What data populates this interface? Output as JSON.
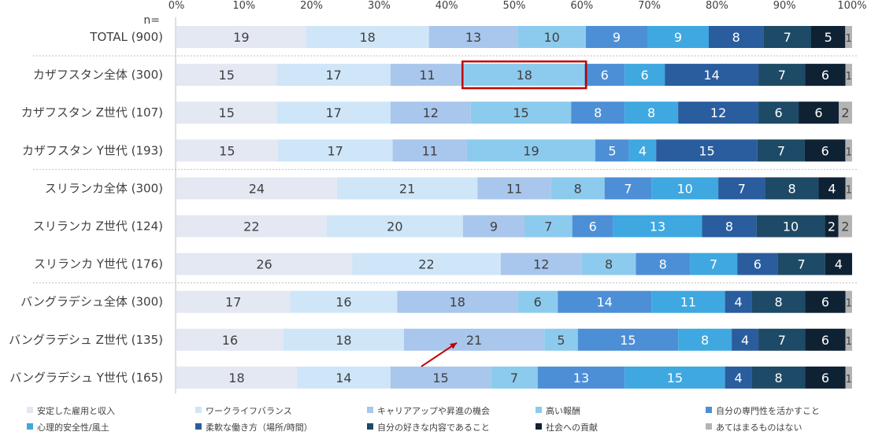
{
  "chart_data": {
    "type": "bar",
    "orientation": "horizontal",
    "stacked": true,
    "percent_stacked": true,
    "n_label": "n=",
    "xlim": [
      0,
      100
    ],
    "x_ticks": [
      "0%",
      "10%",
      "20%",
      "30%",
      "40%",
      "50%",
      "60%",
      "70%",
      "80%",
      "90%",
      "100%"
    ],
    "grid": false,
    "legend_position": "bottom",
    "categories": [
      "TOTAL (900)",
      "カザフスタン全体 (300)",
      "カザフスタン Z世代 (107)",
      "カザフスタン Y世代 (193)",
      "スリランカ全体 (300)",
      "スリランカ Z世代 (124)",
      "スリランカ Y世代 (176)",
      "バングラデシュ全体 (300)",
      "バングラデシュ Z世代 (135)",
      "バングラデシュ Y世代 (165)"
    ],
    "series": [
      {
        "name": "安定した雇用と収入",
        "color": "#e4e8f3",
        "values": [
          19,
          15,
          15,
          15,
          24,
          22,
          26,
          17,
          16,
          18
        ]
      },
      {
        "name": "ワークライフバランス",
        "color": "#cfe6f8",
        "values": [
          18,
          17,
          17,
          17,
          21,
          20,
          22,
          16,
          18,
          14
        ]
      },
      {
        "name": "キャリアアップや昇進の機会",
        "color": "#a9c6ec",
        "values": [
          13,
          11,
          12,
          11,
          11,
          9,
          12,
          18,
          21,
          15
        ]
      },
      {
        "name": "高い報酬",
        "color": "#8ccbee",
        "values": [
          10,
          18,
          15,
          19,
          8,
          7,
          8,
          6,
          5,
          7
        ]
      },
      {
        "name": "自分の専門性を活かすこと",
        "color": "#4d8fd6",
        "values": [
          9,
          6,
          8,
          5,
          7,
          6,
          8,
          14,
          15,
          13
        ]
      },
      {
        "name": "心理的安全性/風土",
        "color": "#3fa8e0",
        "values": [
          9,
          6,
          8,
          4,
          10,
          13,
          7,
          11,
          8,
          15
        ]
      },
      {
        "name": "柔軟な働き方（場所/時間）",
        "color": "#2a5d9e",
        "values": [
          8,
          14,
          12,
          15,
          7,
          8,
          6,
          4,
          4,
          4
        ]
      },
      {
        "name": "自分の好きな内容であること",
        "color": "#1d4a66",
        "values": [
          7,
          7,
          6,
          7,
          8,
          10,
          7,
          8,
          7,
          8
        ]
      },
      {
        "name": "社会への貢献",
        "color": "#0f2234",
        "values": [
          5,
          6,
          6,
          6,
          4,
          2,
          4,
          6,
          6,
          6
        ]
      },
      {
        "name": "あてはまるものはない",
        "color": "#b4b4b4",
        "values": [
          1,
          1,
          2,
          1,
          1,
          2,
          0,
          1,
          1,
          1
        ]
      }
    ],
    "group_separators_after": [
      0,
      3,
      6
    ],
    "highlight": {
      "category_index": 1,
      "series_index": 3,
      "color": "#c00000"
    },
    "annotation_arrow": {
      "category_index": 8,
      "series_index": 2,
      "color": "#c00000"
    }
  }
}
